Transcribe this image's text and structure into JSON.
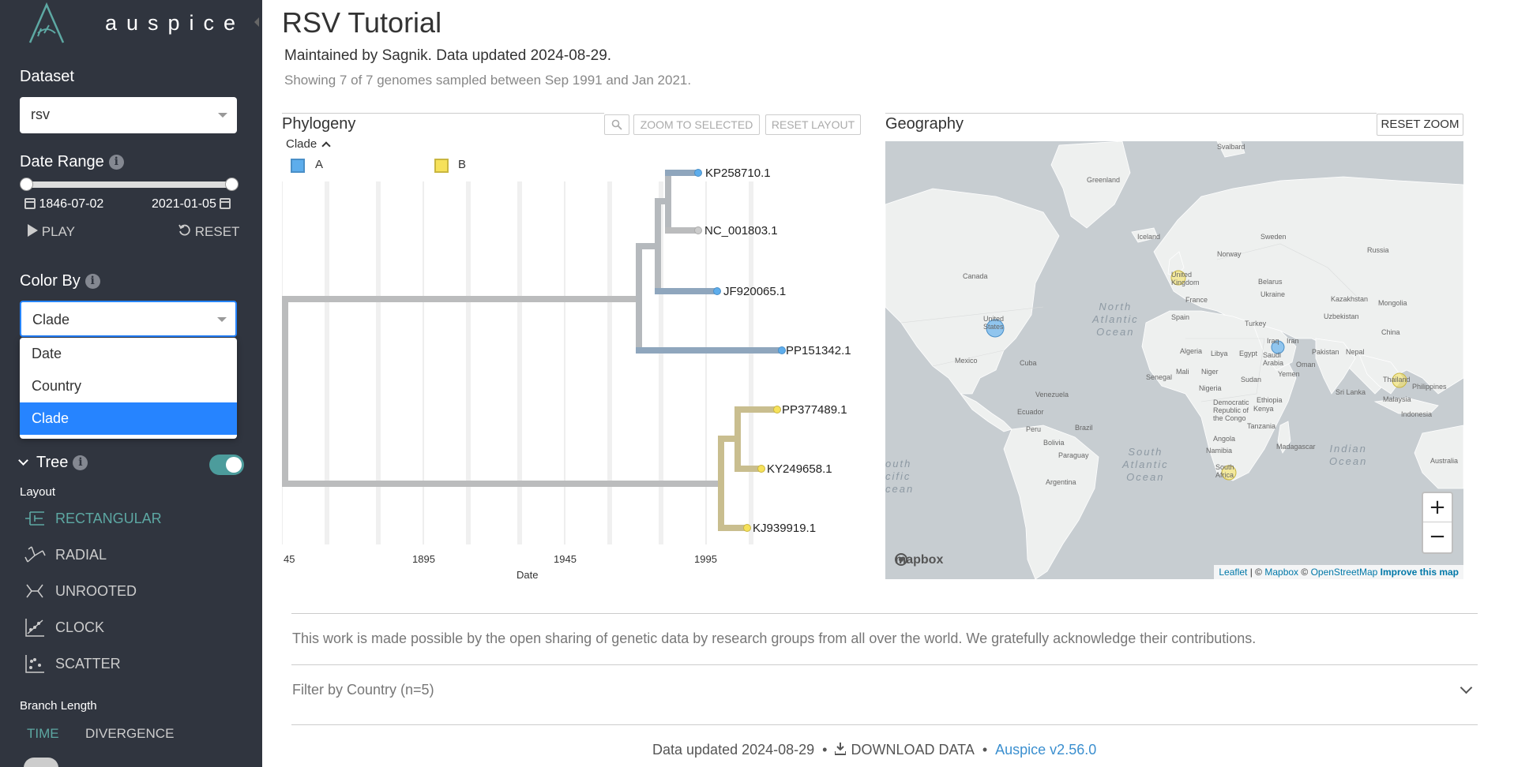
{
  "app": {
    "name": "auspice"
  },
  "sidebar": {
    "dataset_heading": "Dataset",
    "dataset_value": "rsv",
    "date_range_heading": "Date Range",
    "date_start": "1846-07-02",
    "date_end": "2021-01-05",
    "play_label": "PLAY",
    "reset_label": "RESET",
    "color_by_heading": "Color By",
    "color_by_value": "Clade",
    "color_by_options": [
      "Date",
      "Country",
      "Clade"
    ],
    "tree_heading": "Tree",
    "tree_toggle_on": true,
    "layout_heading": "Layout",
    "layouts": [
      "RECTANGULAR",
      "RADIAL",
      "UNROOTED",
      "CLOCK",
      "SCATTER"
    ],
    "active_layout": "RECTANGULAR",
    "branch_length_heading": "Branch Length",
    "branch_length_time": "TIME",
    "branch_length_divergence": "DIVERGENCE"
  },
  "header": {
    "title": "RSV Tutorial",
    "maintainers": "Maintained by Sagnik. Data updated 2024-08-29.",
    "showing": "Showing 7 of 7 genomes sampled between Sep 1991 and Jan 2021."
  },
  "phylogeny": {
    "title": "Phylogeny",
    "zoom_selected": "ZOOM TO SELECTED",
    "reset_layout": "RESET LAYOUT",
    "legend_title": "Clade",
    "legend": [
      {
        "label": "A",
        "color": "#5dadec"
      },
      {
        "label": "B",
        "color": "#f6e15a"
      }
    ],
    "axis_label": "Date",
    "ticks": [
      "45",
      "1895",
      "1945",
      "1995"
    ],
    "tips": [
      {
        "name": "KP258710.1",
        "clade": "A"
      },
      {
        "name": "NC_001803.1",
        "clade": ""
      },
      {
        "name": "JF920065.1",
        "clade": "A"
      },
      {
        "name": "PP151342.1",
        "clade": "A"
      },
      {
        "name": "PP377489.1",
        "clade": "B"
      },
      {
        "name": "KY249658.1",
        "clade": "B"
      },
      {
        "name": "KJ939919.1",
        "clade": "B"
      }
    ]
  },
  "geography": {
    "title": "Geography",
    "reset_zoom": "RESET ZOOM",
    "zoom_in": "+",
    "zoom_out": "−",
    "mapbox_logo": "mapbox",
    "attribution": {
      "leaflet": "Leaflet",
      "sep": " | © ",
      "mapbox": "Mapbox",
      "sep2": " © ",
      "osm": "OpenStreetMap",
      "improve": "Improve this map"
    },
    "labels": [
      "Svalbard",
      "Greenland",
      "Iceland",
      "Sweden",
      "Norway",
      "Russia",
      "Canada",
      "United Kingdom",
      "Belarus",
      "Ukraine",
      "Kazakhstan",
      "France",
      "Uzbekistan",
      "Spain",
      "Turkey",
      "Mongolia",
      "United States",
      "Iraq",
      "Iran",
      "China",
      "Algeria",
      "Libya",
      "Egypt",
      "Saudi Arabia",
      "Pakistan",
      "Nepal",
      "Mexico",
      "Cuba",
      "Oman",
      "Mali",
      "Niger",
      "Sudan",
      "Yemen",
      "Senegal",
      "Nigeria",
      "Thailand",
      "Philippines",
      "Venezuela",
      "Ethiopia",
      "Sri Lanka",
      "Malaysia",
      "Democratic Republic of the Congo",
      "Kenya",
      "Ecuador",
      "Peru",
      "Brazil",
      "Indonesia",
      "Tanzania",
      "Angola",
      "Bolivia",
      "Madagascar",
      "Namibia",
      "Paraguay",
      "South Africa",
      "Argentina",
      "Australia"
    ],
    "oceans": [
      "North\nAtlantic\nOcean",
      "South\nAtlantic\nOcean",
      "Indian\nOcean",
      "outh\ncific\ncean"
    ]
  },
  "footer": {
    "acknowledgement": "This work is made possible by the open sharing of genetic data by research groups from all over the world. We gratefully acknowledge their contributions.",
    "filter_label": "Filter by Country (n=5)",
    "data_updated": "Data updated 2024-08-29",
    "download": "DOWNLOAD DATA",
    "version": "Auspice v2.56.0"
  }
}
